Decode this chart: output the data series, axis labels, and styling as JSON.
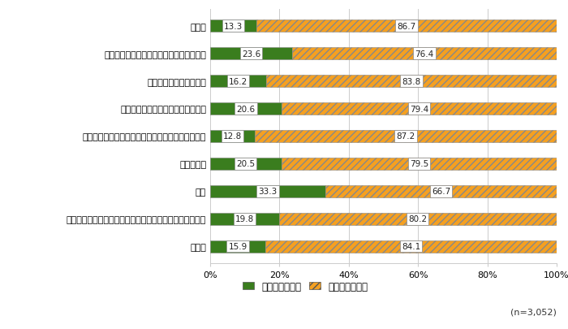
{
  "categories": [
    "会社員",
    "自営業・家族従業者（農業・漁業を含む）",
    "医師・弁護士等の資格職",
    "公務員・団体職員（教職員を含む）",
    "派遣・契約社員、パートタイム従業者、アルバイト",
    "主婦・主夫",
    "学生",
    "無職（求職者、退職者を含む。主婦・主夫、学生を除く）",
    "その他"
  ],
  "yes_values": [
    13.3,
    23.6,
    16.2,
    20.6,
    12.8,
    20.5,
    33.3,
    19.8,
    15.9
  ],
  "no_values": [
    86.7,
    76.4,
    83.8,
    79.4,
    87.2,
    79.5,
    66.7,
    80.2,
    84.1
  ],
  "yes_color": "#3a7d1e",
  "no_color": "#f5a020",
  "no_hatch": "////",
  "bar_height": 0.45,
  "xlim": [
    0,
    100
  ],
  "xticks": [
    0,
    20,
    40,
    60,
    80,
    100
  ],
  "xticklabels": [
    "0%",
    "20%",
    "40%",
    "60%",
    "80%",
    "100%"
  ],
  "legend_yes": "したことがある",
  "legend_no": "したことがない",
  "note": "(n=3,052)",
  "background_color": "#ffffff",
  "grid_color": "#cccccc",
  "label_fontsize": 8,
  "tick_fontsize": 8,
  "value_fontsize": 7.5
}
